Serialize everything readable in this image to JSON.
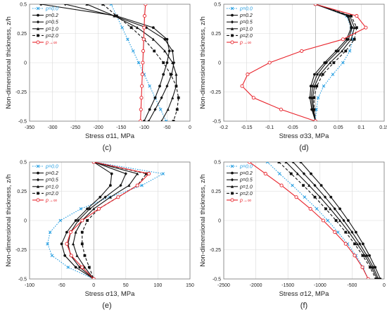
{
  "figure": {
    "background": "#ffffff"
  },
  "ylabel": "Non-dimensional thickness, z/h",
  "legend_entries": [
    "p=0.0",
    "p=0.2",
    "p=0.5",
    "p=1.0",
    "p=2.0",
    "p→∞"
  ],
  "chart_data": [
    {
      "panel": "(c)",
      "type": "line",
      "xlabel": "Stress σ11, MPa",
      "ylabel": "Non-dimensional thickness, z/h",
      "xlim": [
        -350,
        0
      ],
      "ylim": [
        -0.5,
        0.5
      ],
      "xticks": [
        -350,
        -300,
        -250,
        -200,
        -150,
        -100,
        -50,
        0
      ],
      "yticks": [
        0.5,
        0.25,
        0,
        -0.25,
        -0.5
      ],
      "ytick_labels": [
        "0.5",
        "0.25",
        "0",
        "-0.25",
        "-0.5"
      ],
      "grid": true,
      "legend": "top-left",
      "y": [
        0.5,
        0.4,
        0.3,
        0.2,
        0.1,
        0,
        -0.1,
        -0.2,
        -0.3,
        -0.4,
        -0.5
      ],
      "series": [
        {
          "name": "p=0.0",
          "color": "#1f9be0",
          "dash": "dot",
          "marker": "x",
          "x": [
            -172,
            -160,
            -148,
            -136,
            -124,
            -112,
            -100,
            -88,
            -76,
            -64,
            -52
          ]
        },
        {
          "name": "p=0.2",
          "color": "#111111",
          "dash": "solid",
          "marker": "circle",
          "x": [
            -325,
            -160,
            -80,
            -50,
            -45,
            -50,
            -58,
            -66,
            -76,
            -88,
            -100
          ]
        },
        {
          "name": "p=0.5",
          "color": "#111111",
          "dash": "solid",
          "marker": "diamond",
          "x": [
            -272,
            -165,
            -95,
            -55,
            -38,
            -35,
            -40,
            -50,
            -62,
            -76,
            -90
          ]
        },
        {
          "name": "p=1.0",
          "color": "#111111",
          "dash": "solid",
          "marker": "triangle",
          "x": [
            -225,
            -165,
            -115,
            -80,
            -55,
            -38,
            -30,
            -30,
            -38,
            -48,
            -62
          ]
        },
        {
          "name": "p=2.0",
          "color": "#111111",
          "dash": "dash",
          "marker": "square",
          "x": [
            -190,
            -160,
            -128,
            -100,
            -78,
            -58,
            -42,
            -30,
            -25,
            -28,
            -36
          ]
        },
        {
          "name": "p→∞",
          "color": "#e8222a",
          "dash": "solid",
          "marker": "open-circle",
          "x": [
            -97,
            -99,
            -100,
            -101,
            -102,
            -103,
            -104,
            -105,
            -106,
            -107,
            -108
          ]
        }
      ]
    },
    {
      "panel": "(d)",
      "type": "line",
      "xlabel": "Stress σ33, MPa",
      "ylabel": "Non-dimensional thickness, z/h",
      "xlim": [
        -0.2,
        0.15
      ],
      "ylim": [
        -0.5,
        0.5
      ],
      "xticks": [
        -0.2,
        -0.15,
        -0.1,
        -0.05,
        0,
        0.05,
        0.1,
        0.15
      ],
      "yticks": [
        0.5,
        0.25,
        0,
        -0.25,
        -0.5
      ],
      "ytick_labels": [
        "0.5",
        "0.25",
        "0",
        "-0.25",
        "-0.5"
      ],
      "grid": true,
      "legend": "top-left",
      "y": [
        0.5,
        0.4,
        0.3,
        0.2,
        0.1,
        0,
        -0.1,
        -0.2,
        -0.3,
        -0.4,
        -0.5
      ],
      "series": [
        {
          "name": "p=0.0",
          "color": "#1f9be0",
          "dash": "dot",
          "marker": "x",
          "x": [
            0,
            0.068,
            0.078,
            0.082,
            0.075,
            0.06,
            0.038,
            0.018,
            0.006,
            0.002,
            0
          ]
        },
        {
          "name": "p=0.2",
          "color": "#111111",
          "dash": "solid",
          "marker": "circle",
          "x": [
            0,
            0.07,
            0.078,
            0.068,
            0.045,
            0.02,
            -0.002,
            -0.01,
            -0.012,
            -0.008,
            0
          ]
        },
        {
          "name": "p=0.5",
          "color": "#111111",
          "dash": "solid",
          "marker": "diamond",
          "x": [
            0,
            0.072,
            0.08,
            0.072,
            0.05,
            0.024,
            0.004,
            -0.006,
            -0.009,
            -0.006,
            0
          ]
        },
        {
          "name": "p=1.0",
          "color": "#111111",
          "dash": "solid",
          "marker": "triangle",
          "x": [
            0,
            0.075,
            0.085,
            0.078,
            0.058,
            0.032,
            0.01,
            -0.002,
            -0.006,
            -0.004,
            0
          ]
        },
        {
          "name": "p=2.0",
          "color": "#111111",
          "dash": "dash",
          "marker": "square",
          "x": [
            0,
            0.078,
            0.09,
            0.085,
            0.066,
            0.04,
            0.016,
            0.003,
            -0.003,
            -0.003,
            0
          ]
        },
        {
          "name": "p→∞",
          "color": "#e8222a",
          "dash": "solid",
          "marker": "open-circle",
          "x": [
            0,
            0.09,
            0.11,
            0.06,
            -0.03,
            -0.1,
            -0.148,
            -0.16,
            -0.135,
            -0.075,
            0
          ]
        }
      ]
    },
    {
      "panel": "(e)",
      "type": "line",
      "xlabel": "Stress σ13, MPa",
      "ylabel": "Non-dimensional thickness, z/h",
      "xlim": [
        -100,
        150
      ],
      "ylim": [
        -0.5,
        0.5
      ],
      "xticks": [
        -100,
        -50,
        0,
        50,
        100,
        150
      ],
      "yticks": [
        0.5,
        0.25,
        0,
        -0.25,
        -0.5
      ],
      "ytick_labels": [
        "0.5",
        "0.25",
        "0",
        "-0.25",
        "-0.5"
      ],
      "grid": true,
      "legend": "top-left",
      "y": [
        0.5,
        0.4,
        0.3,
        0.2,
        0.1,
        0,
        -0.1,
        -0.2,
        -0.3,
        -0.4,
        -0.5
      ],
      "series": [
        {
          "name": "p=0.0",
          "color": "#1f9be0",
          "dash": "dot",
          "marker": "x",
          "x": [
            0,
            108,
            75,
            25,
            -20,
            -52,
            -68,
            -72,
            -65,
            -40,
            0
          ]
        },
        {
          "name": "p=0.2",
          "color": "#111111",
          "dash": "solid",
          "marker": "circle",
          "x": [
            0,
            28,
            26,
            10,
            -10,
            -28,
            -42,
            -50,
            -45,
            -28,
            0
          ]
        },
        {
          "name": "p=0.5",
          "color": "#111111",
          "dash": "solid",
          "marker": "diamond",
          "x": [
            0,
            50,
            42,
            18,
            -6,
            -24,
            -36,
            -40,
            -36,
            -22,
            0
          ]
        },
        {
          "name": "p=1.0",
          "color": "#111111",
          "dash": "solid",
          "marker": "triangle",
          "x": [
            0,
            68,
            55,
            26,
            0,
            -18,
            -28,
            -32,
            -26,
            -14,
            0
          ]
        },
        {
          "name": "p=2.0",
          "color": "#111111",
          "dash": "dash",
          "marker": "square",
          "x": [
            0,
            82,
            68,
            38,
            8,
            -10,
            -18,
            -18,
            -14,
            -7,
            0
          ]
        },
        {
          "name": "p→∞",
          "color": "#e8222a",
          "dash": "solid",
          "marker": "open-circle",
          "x": [
            0,
            86,
            68,
            38,
            8,
            -18,
            -36,
            -42,
            -35,
            -18,
            0
          ]
        }
      ]
    },
    {
      "panel": "(f)",
      "type": "line",
      "xlabel": "Stress σ12, MPa",
      "ylabel": "Non-dimensional thickness, z/h",
      "xlim": [
        -2500,
        0
      ],
      "ylim": [
        -0.5,
        0.5
      ],
      "xticks": [
        -2500,
        -2000,
        -1500,
        -1000,
        -500,
        0
      ],
      "yticks": [
        0.5,
        0.25,
        0,
        -0.25,
        -0.5
      ],
      "ytick_labels": [
        "0.5",
        "0.25",
        "0",
        "-0.25",
        "-0.5"
      ],
      "grid": true,
      "legend": "top-left",
      "y": [
        0.5,
        0.4,
        0.3,
        0.2,
        0.1,
        0,
        -0.1,
        -0.2,
        -0.3,
        -0.4,
        -0.5
      ],
      "series": [
        {
          "name": "p=0.0",
          "color": "#1f9be0",
          "dash": "dot",
          "marker": "x",
          "x": [
            -1820,
            -1630,
            -1430,
            -1240,
            -1050,
            -880,
            -720,
            -570,
            -440,
            -330,
            -250
          ]
        },
        {
          "name": "p=0.2",
          "color": "#111111",
          "dash": "solid",
          "marker": "circle",
          "x": [
            -1300,
            -1140,
            -980,
            -830,
            -690,
            -560,
            -440,
            -330,
            -230,
            -140,
            -60
          ]
        },
        {
          "name": "p=0.5",
          "color": "#111111",
          "dash": "solid",
          "marker": "diamond",
          "x": [
            -1420,
            -1250,
            -1080,
            -920,
            -770,
            -630,
            -500,
            -380,
            -270,
            -170,
            -90
          ]
        },
        {
          "name": "p=1.0",
          "color": "#111111",
          "dash": "solid",
          "marker": "triangle",
          "x": [
            -1530,
            -1350,
            -1170,
            -1000,
            -840,
            -690,
            -550,
            -420,
            -300,
            -195,
            -110
          ]
        },
        {
          "name": "p=2.0",
          "color": "#111111",
          "dash": "dash",
          "marker": "square",
          "x": [
            -1640,
            -1450,
            -1260,
            -1080,
            -910,
            -750,
            -600,
            -460,
            -335,
            -220,
            -130
          ]
        },
        {
          "name": "p→∞",
          "color": "#e8222a",
          "dash": "solid",
          "marker": "open-circle",
          "x": [
            -2100,
            -1850,
            -1600,
            -1370,
            -1150,
            -950,
            -770,
            -600,
            -460,
            -340,
            -250
          ]
        }
      ]
    }
  ]
}
